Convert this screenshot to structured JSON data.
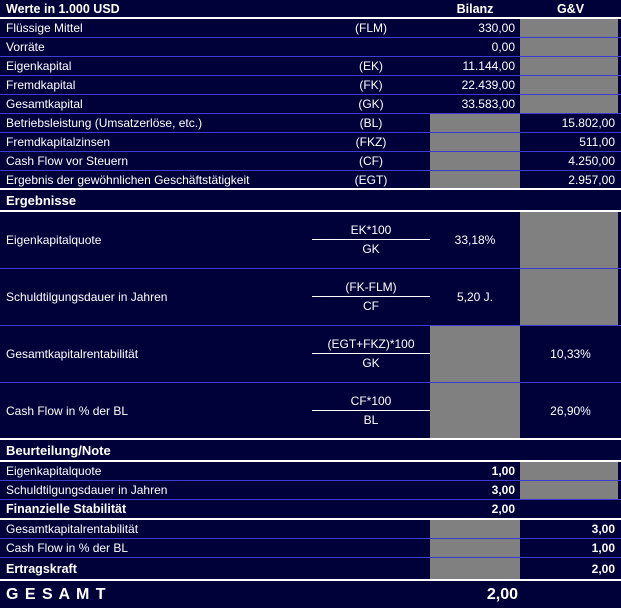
{
  "colors": {
    "background": "#01013a",
    "grid_line": "#3c3cd2",
    "filled_cell_gray": "#808080",
    "section_divider": "#ffffff",
    "text": "#ffffff"
  },
  "header": {
    "title": "Werte in 1.000 USD",
    "col_bilanz": "Bilanz",
    "col_gv": "G&V"
  },
  "input_rows": [
    {
      "label": "Flüssige Mittel",
      "code": "(FLM)",
      "bilanz": "330,00"
    },
    {
      "label": "Vorräte",
      "code": "",
      "bilanz": "0,00"
    },
    {
      "label": "Eigenkapital",
      "code": "(EK)",
      "bilanz": "11.144,00"
    },
    {
      "label": "Fremdkapital",
      "code": "(FK)",
      "bilanz": "22.439,00"
    },
    {
      "label": "Gesamtkapital",
      "code": "(GK)",
      "bilanz": "33.583,00"
    },
    {
      "label": "Betriebsleistung (Umsatzerlöse, etc.)",
      "code": "(BL)",
      "gv": "15.802,00"
    },
    {
      "label": "Fremdkapitalzinsen",
      "code": "(FKZ)",
      "gv": "511,00"
    },
    {
      "label": "Cash Flow vor Steuern",
      "code": "(CF)",
      "gv": "4.250,00"
    },
    {
      "label": "Ergebnis der gewöhnlichen Geschäftstätigkeit",
      "code": "(EGT)",
      "gv": "2.957,00"
    }
  ],
  "sections": {
    "results": "Ergebnisse",
    "rating": "Beurteilung/Note"
  },
  "ratio_rows": [
    {
      "label": "Eigenkapitalquote",
      "numerator": "EK*100",
      "denominator": "GK",
      "bilanz": "33,18%"
    },
    {
      "label": "Schuldtilgungsdauer in Jahren",
      "numerator": "(FK-FLM)",
      "denominator": "CF",
      "bilanz": "5,20 J."
    },
    {
      "label": "Gesamtkapitalrentabilität",
      "numerator": "(EGT+FKZ)*100",
      "denominator": "GK",
      "gv": "10,33%"
    },
    {
      "label": "Cash Flow in % der BL",
      "numerator": "CF*100",
      "denominator": "BL",
      "gv": "26,90%"
    }
  ],
  "note_rows": [
    {
      "label": "Eigenkapitalquote",
      "bilanz": "1,00"
    },
    {
      "label": "Schuldtilgungsdauer in Jahren",
      "bilanz": "3,00"
    },
    {
      "label": "Finanzielle Stabilität",
      "bilanz": "2,00"
    },
    {
      "label": "Gesamtkapitalrentabilität",
      "gv": "3,00"
    },
    {
      "label": "Cash Flow in % der BL",
      "gv": "1,00"
    },
    {
      "label": "Ertragskraft",
      "gv": "2,00"
    }
  ],
  "total": {
    "label": "G E S A M T",
    "value": "2,00"
  }
}
